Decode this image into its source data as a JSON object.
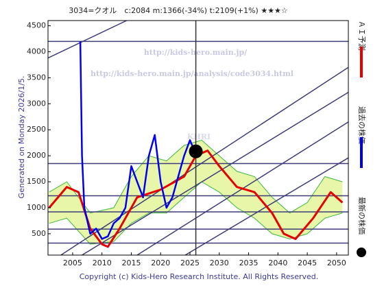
{
  "chart_data": {
    "type": "line",
    "title": "3034=クオル　c:2084  m:1366(-34%)  t:2109(+1%)  ★★★☆",
    "watermarks": [
      "http://kids-hero.main.jp/",
      "http://kids-hero.main.jp/analysis/code3034.html",
      "KHRI"
    ],
    "footer": "Copyright (c) Kids-Hero Research Institute. All Rights Reserved.",
    "generated": "Generated on Monday 2026/1/5.",
    "xlim": [
      2000.8,
      2052
    ],
    "xticks": [
      2005,
      2010,
      2015,
      2020,
      2025,
      2030,
      2035,
      2040,
      2045,
      2050
    ],
    "ylim": [
      90,
      4600
    ],
    "yticks": [
      500,
      1000,
      1500,
      2000,
      2500,
      3000,
      3500,
      4000,
      4500
    ],
    "levels": [
      4200,
      1850,
      1230,
      920,
      590,
      320
    ],
    "vline": 2026,
    "trend_lines": [
      [
        2000.8,
        3880,
        2014.2,
        4600
      ],
      [
        2003,
        90,
        2052,
        3700
      ],
      [
        2006.6,
        90,
        2052,
        3220
      ],
      [
        2016,
        90,
        2052,
        2650
      ],
      [
        2024.2,
        90,
        2052,
        1960
      ]
    ],
    "band": {
      "color": "#e4f59a",
      "edge": "#3cb83c",
      "x": [
        2001,
        2004,
        2008,
        2012,
        2015,
        2018,
        2021,
        2024,
        2027,
        2030,
        2033,
        2036,
        2039,
        2042,
        2045,
        2048,
        2051
      ],
      "upper": [
        1300,
        1500,
        900,
        1000,
        1600,
        2000,
        1900,
        2200,
        2300,
        2000,
        1700,
        1600,
        1200,
        900,
        1100,
        1600,
        1500
      ],
      "lower": [
        700,
        800,
        300,
        350,
        700,
        900,
        900,
        1200,
        1500,
        1300,
        1000,
        800,
        500,
        400,
        500,
        800,
        900
      ]
    },
    "series": [
      {
        "name": "ＡＩ予測",
        "color": "#e60000",
        "x": [
          2001,
          2004,
          2006,
          2008,
          2010,
          2011,
          2013,
          2016,
          2020,
          2024,
          2026,
          2028,
          2030,
          2033,
          2036,
          2039,
          2041,
          2043,
          2046,
          2049,
          2051
        ],
        "values": [
          1000,
          1400,
          1300,
          600,
          300,
          250,
          600,
          1200,
          1350,
          1600,
          2000,
          2100,
          1800,
          1400,
          1300,
          900,
          500,
          400,
          800,
          1300,
          1100
        ]
      },
      {
        "name": "過去の株価",
        "color": "#0000ee",
        "x": [
          2006.3,
          2006.6,
          2007,
          2008,
          2009,
          2010,
          2011,
          2012,
          2013,
          2014,
          2015,
          2016,
          2017,
          2018,
          2019,
          2020,
          2021,
          2022,
          2023,
          2024,
          2025,
          2025.8
        ],
        "values": [
          4200,
          2000,
          1000,
          500,
          600,
          400,
          450,
          700,
          800,
          1000,
          1800,
          1500,
          1200,
          2000,
          2400,
          1500,
          1000,
          1200,
          1600,
          2000,
          2300,
          2084
        ]
      },
      {
        "name": "最新の株価",
        "color": "#000000",
        "x": [
          2026
        ],
        "values": [
          2084
        ]
      }
    ]
  }
}
